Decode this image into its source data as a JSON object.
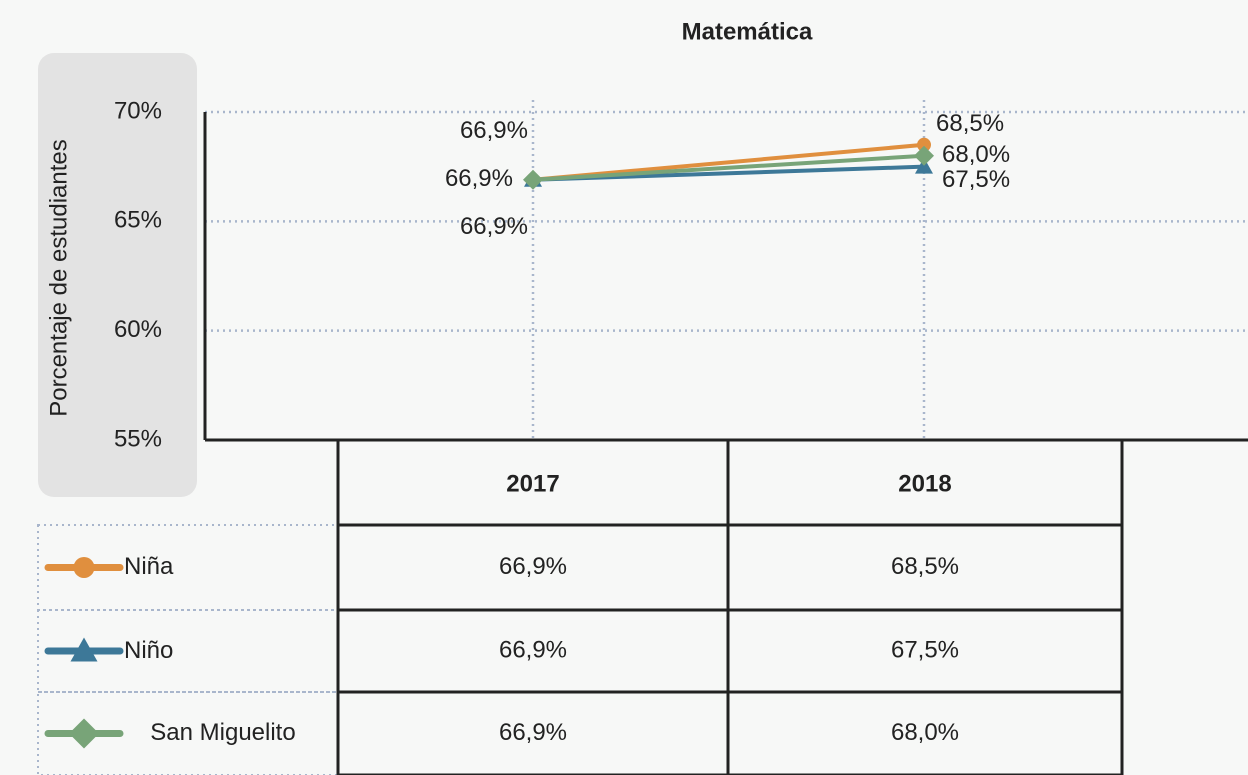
{
  "chart_data": {
    "type": "line",
    "title": "Matemática",
    "y_label": "Porcentaje de estudiantes",
    "categories": [
      "2017",
      "2018"
    ],
    "series": [
      {
        "name": "Niña",
        "color": "#e08f3e",
        "marker": "circle",
        "values": [
          66.9,
          68.5
        ],
        "value_labels": [
          "66,9%",
          "68,5%"
        ]
      },
      {
        "name": "Niño",
        "color": "#3d7898",
        "marker": "triangle",
        "values": [
          66.9,
          67.5
        ],
        "value_labels": [
          "66,9%",
          "67,5%"
        ]
      },
      {
        "name": "San Miguelito",
        "color": "#78a478",
        "marker": "diamond",
        "values": [
          66.9,
          68.0
        ],
        "value_labels": [
          "66,9%",
          "68,0%"
        ]
      }
    ],
    "ylim": [
      55,
      70
    ],
    "yticks": [
      {
        "value": 55,
        "label": "55%"
      },
      {
        "value": 60,
        "label": "60%"
      },
      {
        "value": 65,
        "label": "65%"
      },
      {
        "value": 70,
        "label": "70%"
      }
    ],
    "grid": true
  }
}
